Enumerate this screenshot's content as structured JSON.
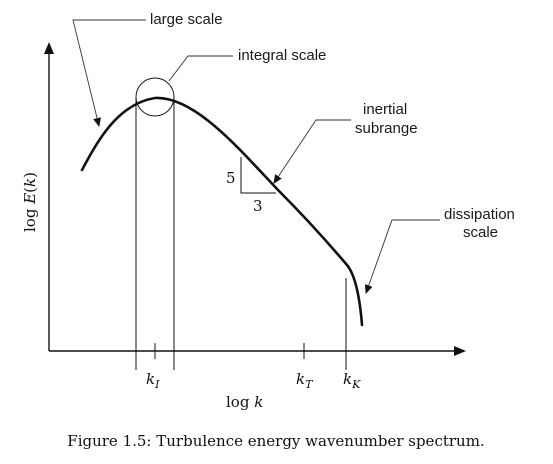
{
  "diagram": {
    "callouts": {
      "large_scale": "large scale",
      "integral_scale": "integral scale",
      "inertial_line1": "inertial",
      "inertial_line2": "subrange",
      "dissipation_line1": "dissipation",
      "dissipation_line2": "scale"
    },
    "slope_triangle": {
      "rise_label": "5",
      "run_label": "3"
    },
    "axes": {
      "y_label_prefix": "log ",
      "y_label_var": "E",
      "y_label_open": "(",
      "y_label_arg": "k",
      "y_label_close": ")",
      "x_label_prefix": "log ",
      "x_label_var": "k"
    },
    "ticks": {
      "k_I": {
        "base": "k",
        "sub": "I"
      },
      "k_T": {
        "base": "k",
        "sub": "T"
      },
      "k_K": {
        "base": "k",
        "sub": "K"
      }
    },
    "caption": "Figure 1.5: Turbulence energy wavenumber spectrum."
  }
}
